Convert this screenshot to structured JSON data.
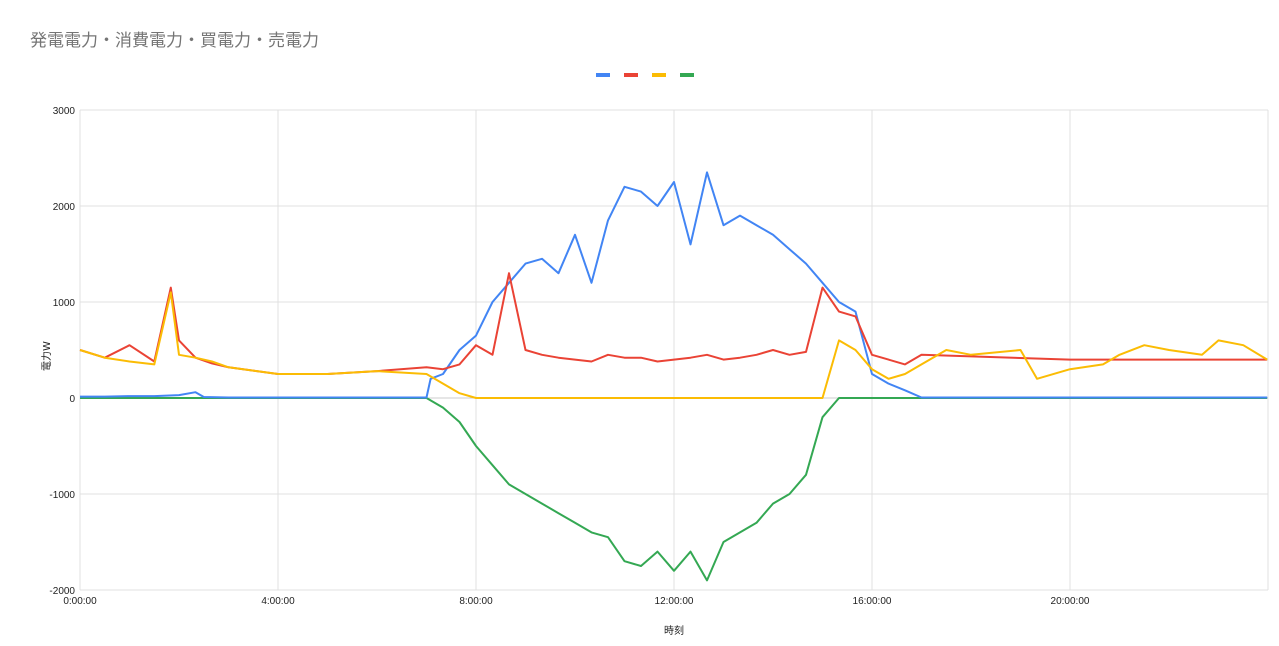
{
  "chart_data": {
    "type": "line",
    "title": "発電電力・消費電力・買電力・売電力",
    "xlabel": "時刻",
    "ylabel": "電力W",
    "ylim": [
      -2000,
      3000
    ],
    "xlim_hours": [
      0,
      24
    ],
    "y_ticks": [
      "3000",
      "2000",
      "1000",
      "0",
      "-1000",
      "-2000"
    ],
    "x_ticks": [
      "0:00:00",
      "4:00:00",
      "8:00:00",
      "12:00:00",
      "16:00:00",
      "20:00:00"
    ],
    "x_tick_hours": [
      0,
      4,
      8,
      12,
      16,
      20
    ],
    "grid": true,
    "legend_position": "top",
    "series": [
      {
        "color": "#4285F4",
        "x": [
          "0:00",
          "0:30",
          "1:00",
          "1:30",
          "2:00",
          "2:20",
          "2:30",
          "3:00",
          "5:00",
          "7:00",
          "7:05",
          "7:20",
          "7:40",
          "8:00",
          "8:20",
          "8:40",
          "9:00",
          "9:20",
          "9:40",
          "10:00",
          "10:20",
          "10:40",
          "11:00",
          "11:20",
          "11:40",
          "12:00",
          "12:20",
          "12:40",
          "13:00",
          "13:20",
          "13:40",
          "14:00",
          "14:20",
          "14:40",
          "15:00",
          "15:20",
          "15:40",
          "16:00",
          "16:20",
          "16:40",
          "17:00",
          "20:00",
          "23:59"
        ],
        "values": [
          15,
          15,
          20,
          20,
          30,
          60,
          10,
          5,
          5,
          5,
          200,
          250,
          500,
          650,
          1000,
          1200,
          1400,
          1450,
          1300,
          1700,
          1200,
          1850,
          2200,
          2150,
          2000,
          2250,
          1600,
          2350,
          1800,
          1900,
          1800,
          1700,
          1550,
          1400,
          1200,
          1000,
          900,
          250,
          150,
          80,
          5,
          5,
          5
        ]
      },
      {
        "color": "#EA4335",
        "x": [
          "0:00",
          "0:30",
          "1:00",
          "1:30",
          "1:50",
          "2:00",
          "2:20",
          "2:40",
          "3:00",
          "4:00",
          "5:00",
          "6:00",
          "7:00",
          "7:20",
          "7:40",
          "8:00",
          "8:20",
          "8:40",
          "9:00",
          "9:20",
          "9:40",
          "10:00",
          "10:20",
          "10:40",
          "11:00",
          "11:20",
          "11:40",
          "12:00",
          "12:20",
          "12:40",
          "13:00",
          "13:20",
          "13:40",
          "14:00",
          "14:20",
          "14:40",
          "15:00",
          "15:20",
          "15:40",
          "16:00",
          "16:20",
          "16:40",
          "17:00",
          "20:00",
          "23:59"
        ],
        "values": [
          500,
          420,
          550,
          380,
          1150,
          600,
          420,
          360,
          320,
          250,
          250,
          280,
          320,
          300,
          350,
          550,
          450,
          1300,
          500,
          450,
          420,
          400,
          380,
          450,
          420,
          420,
          380,
          400,
          420,
          450,
          400,
          420,
          450,
          500,
          450,
          480,
          1150,
          900,
          850,
          450,
          400,
          350,
          450,
          400,
          400
        ]
      },
      {
        "color": "#FBBC04",
        "x": [
          "0:00",
          "0:30",
          "1:00",
          "1:30",
          "1:50",
          "2:00",
          "2:20",
          "2:40",
          "3:00",
          "4:00",
          "5:00",
          "6:00",
          "7:00",
          "7:20",
          "7:40",
          "8:00",
          "15:00",
          "15:20",
          "15:40",
          "16:00",
          "16:20",
          "16:40",
          "17:00",
          "17:30",
          "18:00",
          "19:00",
          "19:20",
          "20:00",
          "20:40",
          "21:00",
          "21:30",
          "22:00",
          "22:40",
          "23:00",
          "23:30",
          "23:59"
        ],
        "values": [
          500,
          420,
          380,
          350,
          1100,
          450,
          420,
          380,
          320,
          250,
          250,
          280,
          250,
          150,
          50,
          0,
          0,
          600,
          500,
          300,
          200,
          250,
          350,
          500,
          450,
          500,
          200,
          300,
          350,
          450,
          550,
          500,
          450,
          600,
          550,
          400
        ]
      },
      {
        "color": "#34A853",
        "x": [
          "0:00",
          "7:00",
          "7:20",
          "7:40",
          "8:00",
          "8:20",
          "8:40",
          "9:00",
          "9:20",
          "9:40",
          "10:00",
          "10:20",
          "10:40",
          "11:00",
          "11:20",
          "11:40",
          "12:00",
          "12:20",
          "12:40",
          "13:00",
          "13:20",
          "13:40",
          "14:00",
          "14:20",
          "14:40",
          "15:00",
          "15:20",
          "16:00",
          "20:00",
          "23:59"
        ],
        "values": [
          0,
          0,
          -100,
          -250,
          -500,
          -700,
          -900,
          -1000,
          -1100,
          -1200,
          -1300,
          -1400,
          -1450,
          -1700,
          -1750,
          -1600,
          -1800,
          -1600,
          -1900,
          -1500,
          -1400,
          -1300,
          -1100,
          -1000,
          -800,
          -200,
          0,
          0,
          0,
          0
        ]
      }
    ]
  }
}
